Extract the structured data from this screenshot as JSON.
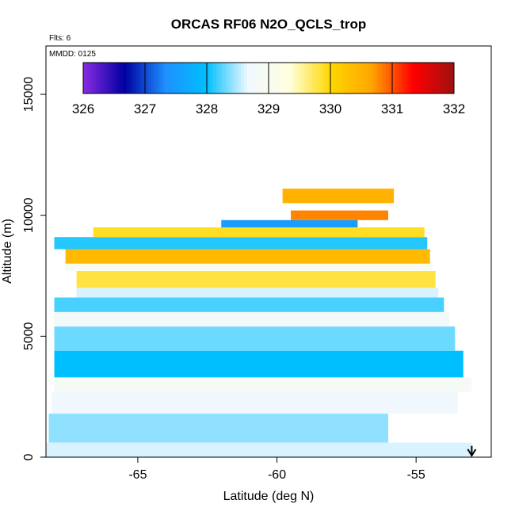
{
  "chart_data": {
    "type": "heatmap",
    "title": "ORCAS RF06 N2O_QCLS_trop",
    "annotations": [
      "Flts: 6",
      "MMDD: 0125"
    ],
    "xlabel": "Latitude (deg N)",
    "ylabel": "Altitude (m)",
    "xlim": [
      -68.3,
      -52.3
    ],
    "ylim": [
      0,
      17000
    ],
    "x_ticks": [
      -65,
      -60,
      -55
    ],
    "y_ticks": [
      0,
      5000,
      10000,
      15000
    ],
    "x_tick_labels": [
      "-65",
      "-60",
      "-55"
    ],
    "y_tick_labels": [
      "0",
      "5000",
      "10000",
      "15000"
    ],
    "colorbar": {
      "min": 326,
      "max": 332,
      "ticks": [
        326,
        327,
        328,
        329,
        330,
        331,
        332
      ],
      "tick_labels": [
        "326",
        "327",
        "328",
        "329",
        "330",
        "331",
        "332"
      ],
      "colors": [
        "#8a2be2",
        "#0000a0",
        "#1e90ff",
        "#00bfff",
        "#f0f8ff",
        "#ffffe0",
        "#ffd700",
        "#ffa500",
        "#ff0000",
        "#a01010"
      ]
    },
    "arrow_marker": {
      "x": -53.0,
      "y_top": 600,
      "y_bottom": 0,
      "direction": "down"
    },
    "layers": [
      {
        "lat_start": -68.3,
        "lat_end": -53.0,
        "alt_bottom": 0,
        "alt_top": 600,
        "value": 328.6
      },
      {
        "lat_start": -68.2,
        "lat_end": -56.0,
        "alt_bottom": 600,
        "alt_top": 1800,
        "value": 328.4
      },
      {
        "lat_start": -68.1,
        "lat_end": -53.5,
        "alt_bottom": 1800,
        "alt_top": 2700,
        "value": 328.7
      },
      {
        "lat_start": -68.0,
        "lat_end": -53.0,
        "alt_bottom": 2700,
        "alt_top": 3300,
        "value": 328.9
      },
      {
        "lat_start": -68.0,
        "lat_end": -53.3,
        "alt_bottom": 3300,
        "alt_top": 4400,
        "value": 328.0
      },
      {
        "lat_start": -68.0,
        "lat_end": -53.6,
        "alt_bottom": 4400,
        "alt_top": 5400,
        "value": 328.3
      },
      {
        "lat_start": -68.0,
        "lat_end": -53.8,
        "alt_bottom": 5400,
        "alt_top": 6000,
        "value": 328.8
      },
      {
        "lat_start": -68.0,
        "lat_end": -54.0,
        "alt_bottom": 6000,
        "alt_top": 6600,
        "value": 328.2
      },
      {
        "lat_start": -67.2,
        "lat_end": -54.2,
        "alt_bottom": 6600,
        "alt_top": 7000,
        "value": 328.6
      },
      {
        "lat_start": -67.2,
        "lat_end": -54.3,
        "alt_bottom": 7000,
        "alt_top": 7700,
        "value": 329.8
      },
      {
        "lat_start": -67.6,
        "lat_end": -54.4,
        "alt_bottom": 7700,
        "alt_top": 8000,
        "value": 329.0
      },
      {
        "lat_start": -67.6,
        "lat_end": -54.5,
        "alt_bottom": 8000,
        "alt_top": 8600,
        "value": 330.4
      },
      {
        "lat_start": -68.0,
        "lat_end": -54.6,
        "alt_bottom": 8600,
        "alt_top": 9100,
        "value": 328.1
      },
      {
        "lat_start": -66.6,
        "lat_end": -54.7,
        "alt_bottom": 9100,
        "alt_top": 9500,
        "value": 329.9
      },
      {
        "lat_start": -62.0,
        "lat_end": -57.1,
        "alt_bottom": 9500,
        "alt_top": 9800,
        "value": 327.5
      },
      {
        "lat_start": -59.8,
        "lat_end": -55.8,
        "alt_bottom": 10500,
        "alt_top": 11100,
        "value": 330.5
      },
      {
        "lat_start": -59.5,
        "lat_end": -56.0,
        "alt_bottom": 9800,
        "alt_top": 10200,
        "value": 330.8
      }
    ]
  }
}
